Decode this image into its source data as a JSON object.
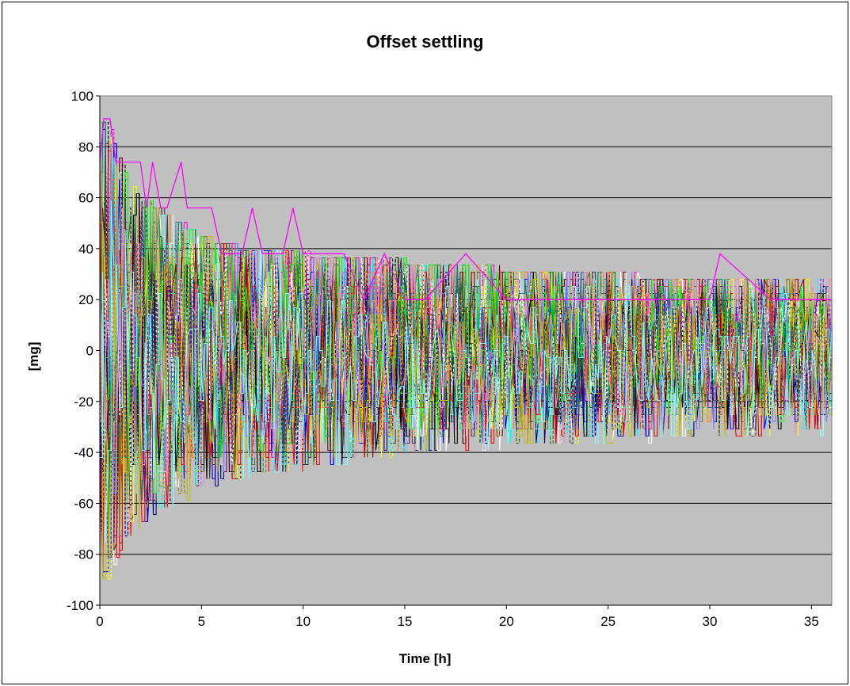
{
  "chart_data": {
    "type": "line",
    "title": "Offset settling",
    "xlabel": "Time [h]",
    "ylabel": "[mg]",
    "xlim": [
      0,
      36
    ],
    "ylim": [
      -100,
      100
    ],
    "x_ticks": [
      "0",
      "5",
      "10",
      "15",
      "20",
      "25",
      "30",
      "35"
    ],
    "y_ticks": [
      "100",
      "80",
      "60",
      "40",
      "20",
      "0",
      "-20",
      "-40",
      "-60",
      "-80",
      "-100"
    ],
    "grid": true,
    "legend": "none",
    "plot_background": "#c0c0c0",
    "series_colors": [
      "#ff00ff",
      "#0000ff",
      "#ffff00",
      "#00ffff",
      "#800000",
      "#008000",
      "#000080",
      "#ff0000",
      "#808000",
      "#800080",
      "#008080",
      "#000000",
      "#ff8000",
      "#00ff00",
      "#8080ff",
      "#ffffff",
      "#ff80c0",
      "#c0c000",
      "#404040",
      "#80ffff"
    ],
    "series_count": 60,
    "envelope": {
      "time_h": [
        0,
        0.5,
        1,
        2,
        3,
        4,
        5,
        7,
        10,
        15,
        20,
        25,
        30,
        36
      ],
      "upper_mg": [
        91,
        90,
        74,
        60,
        55,
        50,
        45,
        40,
        38,
        35,
        32,
        30,
        28,
        27
      ],
      "lower_mg": [
        -98,
        -94,
        -90,
        -83,
        -75,
        -70,
        -65,
        -60,
        -55,
        -43,
        -40,
        -38,
        -35,
        -33
      ]
    },
    "highlighted_series": {
      "color": "#ff00ff",
      "time_h": [
        0,
        0.2,
        0.5,
        0.8,
        1.0,
        2.0,
        2.3,
        2.6,
        3.0,
        3.3,
        4.0,
        4.3,
        4.6,
        5.0,
        5.5,
        6.0,
        7.0,
        7.5,
        8.0,
        9.0,
        9.5,
        10.0,
        12.0,
        13.0,
        14.0,
        15.0,
        16.0,
        18.0,
        20.0,
        22.0,
        25.0,
        28.0,
        30.0,
        30.5,
        33.0,
        36.0
      ],
      "value_mg": [
        74,
        91,
        91,
        74,
        74,
        74,
        56,
        74,
        56,
        56,
        74,
        56,
        56,
        56,
        56,
        38,
        38,
        56,
        38,
        38,
        56,
        38,
        38,
        20,
        38,
        20,
        20,
        38,
        20,
        20,
        20,
        20,
        20,
        38,
        20,
        20
      ]
    }
  }
}
